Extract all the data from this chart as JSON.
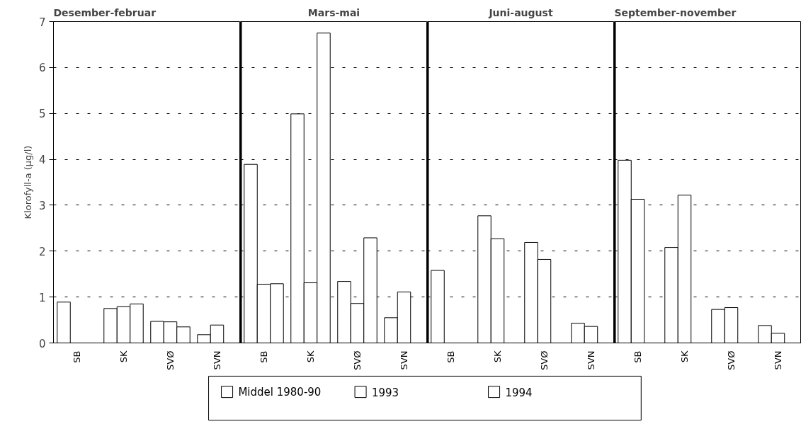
{
  "chart_data": [
    {
      "type": "bar",
      "title": "Desember-februar",
      "ylabel": "Klorofyll-a (µg/l)",
      "categories": [
        "SB",
        "SK",
        "SVØ",
        "SVN"
      ],
      "ylim": [
        0,
        7
      ],
      "yticks": [
        0,
        1,
        2,
        3,
        4,
        5,
        6,
        7
      ],
      "grid": "y",
      "legend": "bottom",
      "series": [
        {
          "name": "Middel 1980-90",
          "color": "#ffffff",
          "values": [
            0.89,
            0.75,
            0.47,
            0.18
          ]
        },
        {
          "name": "1993",
          "color": "#ffffff",
          "values": [
            null,
            0.79,
            0.46,
            0.39
          ]
        },
        {
          "name": "1994",
          "color": "#ffffff",
          "values": [
            null,
            0.85,
            0.35,
            null
          ]
        }
      ]
    },
    {
      "type": "bar",
      "title": "Mars-mai",
      "categories": [
        "SB",
        "SK",
        "SVØ",
        "SVN"
      ],
      "ylim": [
        0,
        7
      ],
      "yticks": [
        0,
        1,
        2,
        3,
        4,
        5,
        6,
        7
      ],
      "grid": "y",
      "tick_labels": "x",
      "series": [
        {
          "color": "#ffffff",
          "values": [
            3.89,
            4.99,
            1.34,
            0.55
          ]
        },
        {
          "color": "#ffffff",
          "values": [
            1.28,
            1.31,
            0.86,
            1.11
          ]
        },
        {
          "color": "#ffffff",
          "values": [
            1.29,
            6.75,
            2.29,
            null
          ]
        }
      ]
    },
    {
      "type": "bar",
      "title": "Juni-august",
      "categories": [
        "SB",
        "SK",
        "SVØ",
        "SVN"
      ],
      "ylim": [
        0,
        7
      ],
      "yticks": [
        0,
        1,
        2,
        3,
        4,
        5,
        6,
        7
      ],
      "grid": "y",
      "tick_labels": "x",
      "series": [
        {
          "color": "#ffffff",
          "values": [
            1.58,
            2.77,
            2.19,
            0.43
          ]
        },
        {
          "color": "#ffffff",
          "values": [
            null,
            2.27,
            1.82,
            0.36
          ]
        },
        {
          "color": "#ffffff",
          "values": [
            null,
            null,
            null,
            null
          ]
        }
      ]
    },
    {
      "type": "bar",
      "title": "September-november",
      "categories": [
        "SB",
        "SK",
        "SVØ",
        "SVN"
      ],
      "ylim": [
        0,
        7
      ],
      "yticks": [
        0,
        1,
        2,
        3,
        4,
        5,
        6,
        7
      ],
      "grid": "y",
      "tick_labels": "x",
      "series": [
        {
          "color": "#ffffff",
          "values": [
            3.98,
            2.08,
            0.73,
            0.38
          ]
        },
        {
          "color": "#ffffff",
          "values": [
            3.13,
            3.22,
            0.77,
            0.21
          ]
        },
        {
          "color": "#ffffff",
          "values": [
            null,
            null,
            null,
            null
          ]
        }
      ]
    }
  ]
}
